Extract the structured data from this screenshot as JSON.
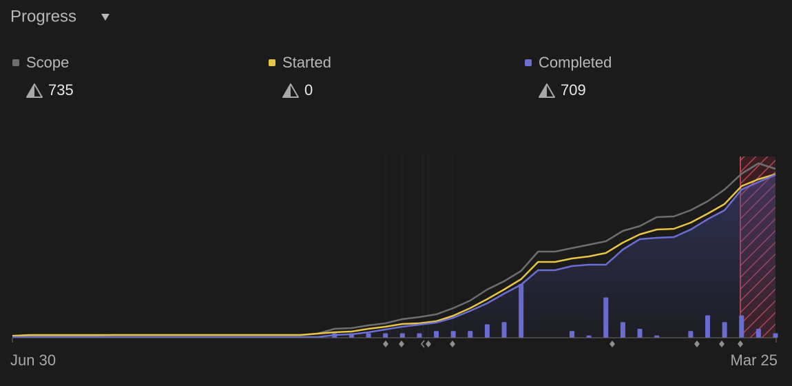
{
  "chart_data": {
    "type": "line",
    "title": "Progress",
    "categories": [
      "Jun 30",
      null,
      null,
      null,
      null,
      null,
      null,
      null,
      null,
      null,
      null,
      null,
      null,
      null,
      null,
      null,
      null,
      null,
      null,
      null,
      null,
      null,
      null,
      null,
      null,
      null,
      null,
      null,
      null,
      null,
      null,
      null,
      null,
      null,
      null,
      null,
      null,
      null,
      null,
      null,
      null,
      null,
      null,
      null,
      null,
      "Mar 25"
    ],
    "ylim": [
      0,
      780
    ],
    "y2lim": [
      0,
      80
    ],
    "series": [
      {
        "name": "Scope",
        "color": "#6e6e70",
        "count": 735,
        "values": [
          5,
          8,
          10,
          10,
          10,
          10,
          12,
          12,
          12,
          12,
          12,
          12,
          12,
          12,
          12,
          12,
          12,
          12,
          18,
          39,
          42,
          54,
          63,
          81,
          90,
          102,
          129,
          162,
          210,
          246,
          291,
          375,
          375,
          390,
          405,
          420,
          465,
          486,
          525,
          528,
          555,
          594,
          645,
          714,
          759,
          735
        ]
      },
      {
        "name": "Started",
        "color": "#e8c547",
        "count": 0,
        "values": [
          8,
          12,
          12,
          12,
          12,
          12,
          12,
          12,
          12,
          12,
          12,
          12,
          12,
          12,
          12,
          12,
          12,
          12,
          18,
          24,
          27,
          39,
          48,
          60,
          63,
          72,
          96,
          129,
          168,
          210,
          255,
          330,
          330,
          345,
          354,
          369,
          414,
          450,
          471,
          474,
          501,
          540,
          582,
          660,
          690,
          712
        ]
      },
      {
        "name": "Completed",
        "color": "#6b6fd4",
        "count": 709,
        "values": [
          3,
          3,
          3,
          3,
          3,
          3,
          3,
          3,
          3,
          3,
          3,
          3,
          3,
          3,
          3,
          3,
          3,
          3,
          3,
          12,
          15,
          24,
          36,
          48,
          57,
          66,
          87,
          117,
          150,
          192,
          231,
          294,
          294,
          312,
          318,
          318,
          384,
          429,
          435,
          438,
          471,
          516,
          555,
          645,
          678,
          709
        ]
      },
      {
        "type": "bar",
        "axis": "y2",
        "color": "#6b6fd4",
        "values": [
          0,
          0,
          0,
          0,
          0,
          0,
          0,
          0,
          0,
          0,
          0,
          0,
          0,
          0,
          0,
          0,
          0,
          0,
          0,
          2,
          2,
          2,
          2,
          2,
          2,
          3,
          3,
          3,
          6,
          7,
          24,
          0,
          0,
          3,
          1,
          18,
          7,
          4,
          1,
          0,
          3,
          10,
          7,
          10,
          4,
          2
        ]
      }
    ]
  }
}
